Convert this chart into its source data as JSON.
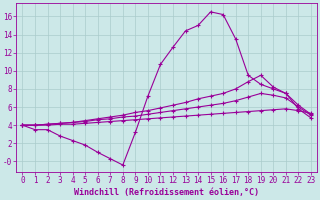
{
  "background_color": "#cce8e8",
  "grid_color": "#aacccc",
  "line_color": "#990099",
  "marker": "+",
  "marker_size": 3,
  "linewidth": 0.8,
  "xlabel": "Windchill (Refroidissement éolien,°C)",
  "xlabel_fontsize": 6,
  "tick_fontsize": 5.5,
  "xlim": [
    -0.5,
    23.5
  ],
  "ylim": [
    -1.2,
    17.5
  ],
  "xticks": [
    0,
    1,
    2,
    3,
    4,
    5,
    6,
    7,
    8,
    9,
    10,
    11,
    12,
    13,
    14,
    15,
    16,
    17,
    18,
    19,
    20,
    21,
    22,
    23
  ],
  "yticks": [
    0,
    2,
    4,
    6,
    8,
    10,
    12,
    14,
    16
  ],
  "ytick_labels": [
    "-0",
    "2",
    "4",
    "6",
    "8",
    "10",
    "12",
    "14",
    "16"
  ],
  "line1_x": [
    0,
    1,
    2,
    3,
    4,
    5,
    6,
    7,
    8,
    9,
    10,
    11,
    12,
    13,
    14,
    15,
    16,
    17,
    18,
    19,
    20,
    21,
    22,
    23
  ],
  "line1_y": [
    4.0,
    3.5,
    3.5,
    2.8,
    2.3,
    1.8,
    1.0,
    0.3,
    -0.4,
    3.2,
    7.2,
    10.7,
    12.6,
    14.4,
    15.0,
    16.5,
    16.2,
    13.5,
    9.5,
    8.5,
    8.0,
    7.5,
    5.8,
    4.8
  ],
  "line2_x": [
    0,
    1,
    2,
    3,
    4,
    5,
    6,
    7,
    8,
    9,
    10,
    11,
    12,
    13,
    14,
    15,
    16,
    17,
    18,
    19,
    20,
    21,
    22,
    23
  ],
  "line2_y": [
    4.0,
    4.0,
    4.1,
    4.2,
    4.3,
    4.5,
    4.7,
    4.9,
    5.1,
    5.4,
    5.6,
    5.9,
    6.2,
    6.5,
    6.9,
    7.2,
    7.5,
    8.0,
    8.8,
    9.5,
    8.2,
    7.5,
    6.2,
    5.2
  ],
  "line3_x": [
    0,
    1,
    2,
    3,
    4,
    5,
    6,
    7,
    8,
    9,
    10,
    11,
    12,
    13,
    14,
    15,
    16,
    17,
    18,
    19,
    20,
    21,
    22,
    23
  ],
  "line3_y": [
    4.0,
    4.0,
    4.1,
    4.2,
    4.3,
    4.4,
    4.6,
    4.7,
    4.9,
    5.0,
    5.2,
    5.4,
    5.6,
    5.8,
    6.0,
    6.2,
    6.4,
    6.7,
    7.1,
    7.5,
    7.3,
    7.0,
    6.0,
    5.1
  ],
  "line4_x": [
    0,
    1,
    2,
    3,
    4,
    5,
    6,
    7,
    8,
    9,
    10,
    11,
    12,
    13,
    14,
    15,
    16,
    17,
    18,
    19,
    20,
    21,
    22,
    23
  ],
  "line4_y": [
    4.0,
    4.0,
    4.0,
    4.1,
    4.1,
    4.2,
    4.3,
    4.4,
    4.5,
    4.6,
    4.7,
    4.8,
    4.9,
    5.0,
    5.1,
    5.2,
    5.3,
    5.4,
    5.5,
    5.6,
    5.7,
    5.8,
    5.6,
    5.3
  ]
}
